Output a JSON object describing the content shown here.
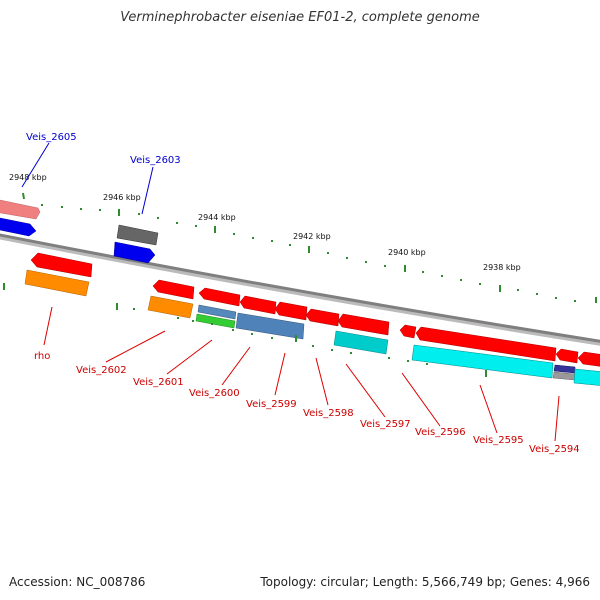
{
  "title": "Verminephrobacter eiseniae EF01-2, complete genome",
  "footer": {
    "accession": "Accession: NC_008786",
    "stats": "Topology: circular; Length: 5,566,749 bp; Genes: 4,966"
  },
  "kbp_labels": [
    "2948 kbp",
    "2946 kbp",
    "2944 kbp",
    "2942 kbp",
    "2940 kbp",
    "2938 kbp"
  ],
  "gene_labels": {
    "veis_2605": "Veis_2605",
    "veis_2603": "Veis_2603",
    "rho": "rho",
    "veis_2602": "Veis_2602",
    "veis_2601": "Veis_2601",
    "veis_2600": "Veis_2600",
    "veis_2599": "Veis_2599",
    "veis_2598": "Veis_2598",
    "veis_2597": "Veis_2597",
    "veis_2596": "Veis_2596",
    "veis_2595": "Veis_2595",
    "veis_2594": "Veis_2594"
  },
  "colors": {
    "genome_line": "#888888",
    "tick": "#2e8b2e",
    "forward_label": "#0000cc",
    "reverse_label": "#cc0000"
  }
}
